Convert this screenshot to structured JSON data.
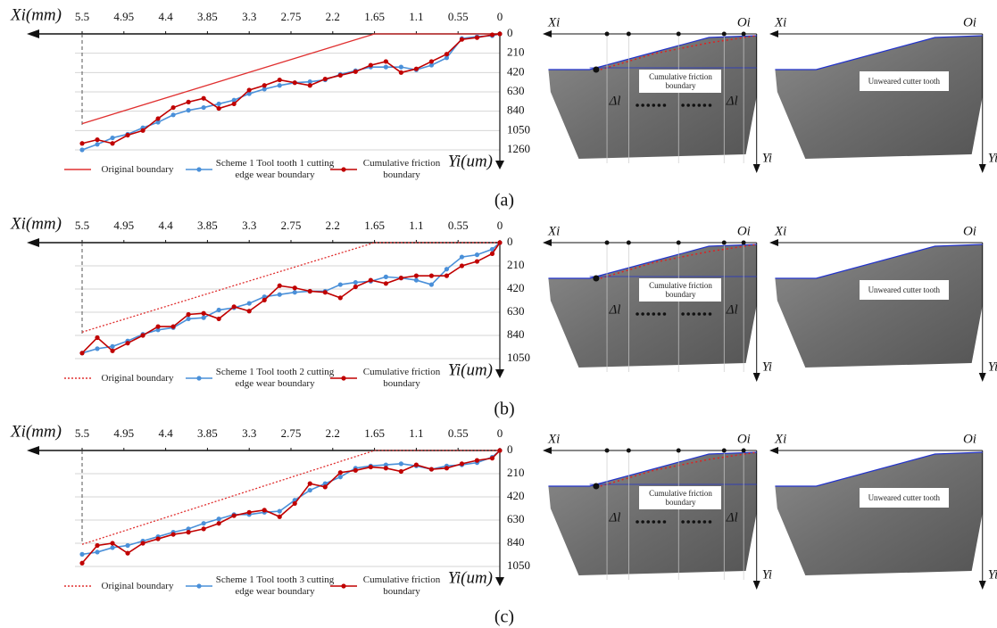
{
  "chart_data": [
    {
      "type": "line",
      "x_label": "Xi(mm)",
      "y_label": "Yi(um)",
      "xlim": [
        5.5,
        0
      ],
      "ylim": [
        0,
        1260
      ],
      "xticks": [
        5.5,
        4.95,
        4.4,
        3.85,
        3.3,
        2.75,
        2.2,
        1.65,
        1.1,
        0.55,
        0
      ],
      "yticks": [
        0,
        210,
        420,
        630,
        840,
        1050,
        1260
      ],
      "grid": true,
      "series": [
        {
          "name": "Original boundary",
          "color": "#e03030",
          "linestyle": "solid",
          "marker": false,
          "x": [
            5.5,
            1.65,
            0
          ],
          "values": [
            975,
            0,
            0
          ]
        },
        {
          "name": "Scheme 1 Tool tooth 1 cutting edge wear boundary",
          "color": "#4a90d9",
          "linestyle": "solid",
          "marker": true,
          "x": [
            5.5,
            5.3,
            5.1,
            4.9,
            4.7,
            4.5,
            4.3,
            4.1,
            3.9,
            3.7,
            3.5,
            3.3,
            3.1,
            2.9,
            2.7,
            2.5,
            2.3,
            2.1,
            1.9,
            1.7,
            1.5,
            1.3,
            1.1,
            0.9,
            0.7,
            0.5,
            0.3,
            0.1,
            0
          ],
          "values": [
            1260,
            1200,
            1130,
            1090,
            1020,
            960,
            880,
            830,
            800,
            760,
            720,
            650,
            600,
            560,
            530,
            520,
            500,
            440,
            400,
            360,
            360,
            360,
            390,
            340,
            260,
            50,
            30,
            20,
            0
          ]
        },
        {
          "name": "Cumulative friction boundary",
          "color": "#c00000",
          "linestyle": "solid",
          "marker": true,
          "x": [
            5.5,
            5.3,
            5.1,
            4.9,
            4.7,
            4.5,
            4.3,
            4.1,
            3.9,
            3.7,
            3.5,
            3.3,
            3.1,
            2.9,
            2.7,
            2.5,
            2.3,
            2.1,
            1.9,
            1.7,
            1.5,
            1.3,
            1.1,
            0.9,
            0.7,
            0.5,
            0.3,
            0.1,
            0
          ],
          "values": [
            1190,
            1150,
            1190,
            1100,
            1050,
            920,
            800,
            740,
            700,
            810,
            760,
            610,
            560,
            500,
            530,
            560,
            490,
            450,
            410,
            340,
            300,
            420,
            380,
            300,
            220,
            60,
            40,
            10,
            0
          ]
        }
      ]
    },
    {
      "type": "line",
      "x_label": "Xi(mm)",
      "y_label": "Yi(um)",
      "xlim": [
        5.5,
        0
      ],
      "ylim": [
        0,
        1050
      ],
      "xticks": [
        5.5,
        4.95,
        4.4,
        3.85,
        3.3,
        2.75,
        2.2,
        1.65,
        1.1,
        0.55,
        0
      ],
      "yticks": [
        0,
        210,
        420,
        630,
        840,
        1050
      ],
      "grid": true,
      "series": [
        {
          "name": "Original boundary",
          "color": "#e03030",
          "linestyle": "dotted",
          "marker": false,
          "x": [
            5.5,
            1.65,
            0
          ],
          "values": [
            810,
            0,
            0
          ]
        },
        {
          "name": "Scheme 1 Tool tooth 2 cutting edge wear boundary",
          "color": "#4a90d9",
          "linestyle": "solid",
          "marker": true,
          "x": [
            5.5,
            5.3,
            5.1,
            4.9,
            4.7,
            4.5,
            4.3,
            4.1,
            3.9,
            3.7,
            3.5,
            3.3,
            3.1,
            2.9,
            2.7,
            2.5,
            2.3,
            2.1,
            1.9,
            1.7,
            1.5,
            1.3,
            1.1,
            0.9,
            0.7,
            0.5,
            0.3,
            0.1,
            0
          ],
          "values": [
            1000,
            960,
            940,
            890,
            830,
            790,
            770,
            690,
            680,
            610,
            590,
            550,
            490,
            470,
            450,
            440,
            440,
            380,
            360,
            350,
            310,
            320,
            340,
            380,
            240,
            130,
            110,
            60,
            0
          ]
        },
        {
          "name": "Cumulative friction boundary",
          "color": "#c00000",
          "linestyle": "solid",
          "marker": true,
          "x": [
            5.5,
            5.3,
            5.1,
            4.9,
            4.7,
            4.5,
            4.3,
            4.1,
            3.9,
            3.7,
            3.5,
            3.3,
            3.1,
            2.9,
            2.7,
            2.5,
            2.3,
            2.1,
            1.9,
            1.7,
            1.5,
            1.3,
            1.1,
            0.9,
            0.7,
            0.5,
            0.3,
            0.1,
            0
          ],
          "values": [
            1000,
            860,
            980,
            910,
            840,
            760,
            760,
            650,
            640,
            690,
            580,
            620,
            520,
            390,
            410,
            440,
            450,
            500,
            400,
            340,
            370,
            320,
            300,
            300,
            300,
            210,
            170,
            100,
            0
          ]
        }
      ]
    },
    {
      "type": "line",
      "x_label": "Xi(mm)",
      "y_label": "Yi(um)",
      "xlim": [
        5.5,
        0
      ],
      "ylim": [
        0,
        1050
      ],
      "xticks": [
        5.5,
        4.95,
        4.4,
        3.85,
        3.3,
        2.75,
        2.2,
        1.65,
        1.1,
        0.55,
        0
      ],
      "yticks": [
        0,
        210,
        420,
        630,
        840,
        1050
      ],
      "grid": true,
      "series": [
        {
          "name": "Original boundary",
          "color": "#e03030",
          "linestyle": "dotted",
          "marker": false,
          "x": [
            5.5,
            1.65,
            0
          ],
          "values": [
            850,
            0,
            0
          ]
        },
        {
          "name": "Scheme 1 Tool tooth 3 cutting edge wear boundary",
          "color": "#4a90d9",
          "linestyle": "solid",
          "marker": true,
          "x": [
            5.5,
            5.3,
            5.1,
            4.9,
            4.7,
            4.5,
            4.3,
            4.1,
            3.9,
            3.7,
            3.5,
            3.3,
            3.1,
            2.9,
            2.7,
            2.5,
            2.3,
            2.1,
            1.9,
            1.7,
            1.5,
            1.3,
            1.1,
            0.9,
            0.7,
            0.5,
            0.3,
            0.1,
            0
          ],
          "values": [
            940,
            920,
            880,
            860,
            820,
            780,
            740,
            710,
            660,
            620,
            580,
            580,
            560,
            550,
            450,
            360,
            300,
            240,
            160,
            140,
            130,
            120,
            140,
            170,
            140,
            130,
            110,
            60,
            0
          ]
        },
        {
          "name": "Cumulative friction boundary",
          "color": "#c00000",
          "linestyle": "solid",
          "marker": true,
          "x": [
            5.5,
            5.3,
            5.1,
            4.9,
            4.7,
            4.5,
            4.3,
            4.1,
            3.9,
            3.7,
            3.5,
            3.3,
            3.1,
            2.9,
            2.7,
            2.5,
            2.3,
            2.1,
            1.9,
            1.7,
            1.5,
            1.3,
            1.1,
            0.9,
            0.7,
            0.5,
            0.3,
            0.1,
            0
          ],
          "values": [
            1020,
            860,
            840,
            930,
            840,
            800,
            760,
            740,
            710,
            660,
            590,
            560,
            540,
            600,
            480,
            300,
            330,
            200,
            180,
            150,
            160,
            190,
            130,
            170,
            160,
            120,
            90,
            70,
            0
          ]
        }
      ]
    }
  ],
  "figure": {
    "panels": [
      {
        "label": "(a)",
        "photo_left": {
          "x_axis": "Xi",
          "origin": "Oi",
          "y_axis": "Yi",
          "box": "Cumulative friction boundary",
          "delta_labels": [
            "Δl",
            "Δl"
          ]
        },
        "photo_right": {
          "x_axis": "Xi",
          "origin": "Oi",
          "y_axis": "Yi",
          "box": "Unweared cutter tooth"
        }
      },
      {
        "label": "(b)",
        "photo_left": {
          "x_axis": "Xi",
          "origin": "Oi",
          "y_axis": "Yi",
          "box": "Cumulative friction boundary",
          "delta_labels": [
            "Δl",
            "Δl"
          ]
        },
        "photo_right": {
          "x_axis": "Xi",
          "origin": "Oi",
          "y_axis": "Yi",
          "box": "Unweared cutter tooth"
        }
      },
      {
        "label": "(c)",
        "photo_left": {
          "x_axis": "Xi",
          "origin": "Oi",
          "y_axis": "Yi",
          "box": "Cumulative friction boundary",
          "delta_labels": [
            "Δl",
            "Δl"
          ]
        },
        "photo_right": {
          "x_axis": "Xi",
          "origin": "Oi",
          "y_axis": "Yi",
          "box": "Unweared cutter tooth"
        }
      }
    ]
  }
}
